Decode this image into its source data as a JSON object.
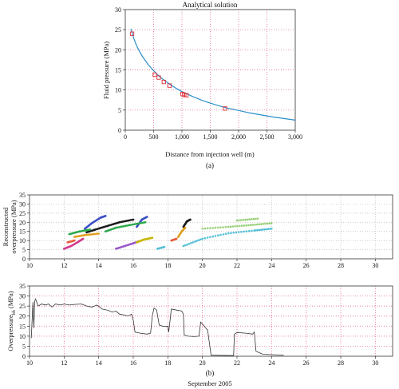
{
  "figure": {
    "panel_a_label": "(a)",
    "panel_b_label": "(b)",
    "footer": "September 2005"
  },
  "chart_data": [
    {
      "type": "line",
      "title": "Analytical solution",
      "xlabel": "Distance from injection well (m)",
      "ylabel": "Fluid pressure (MPa)",
      "xlim": [
        0,
        3000
      ],
      "ylim": [
        0,
        30
      ],
      "xticks": [
        0,
        500,
        1000,
        1500,
        2000,
        2500,
        3000
      ],
      "xtick_labels": [
        "0",
        "500",
        "1,000",
        "1,500",
        "2,000",
        "2,500",
        "3,000"
      ],
      "yticks": [
        0,
        5,
        10,
        15,
        20,
        25,
        30
      ],
      "grid": "dotted red",
      "series": [
        {
          "kind": "curve",
          "color": "#2a8fc9",
          "x": [
            100,
            150,
            200,
            250,
            300,
            400,
            500,
            600,
            700,
            800,
            900,
            1000,
            1200,
            1400,
            1600,
            1800,
            2000,
            2200,
            2400,
            2600,
            2800,
            3000
          ],
          "y": [
            25.2,
            22.8,
            21.0,
            19.6,
            18.4,
            16.4,
            14.8,
            13.4,
            12.3,
            11.3,
            10.4,
            9.6,
            8.3,
            7.2,
            6.3,
            5.5,
            4.9,
            4.3,
            3.8,
            3.3,
            2.9,
            2.5
          ]
        },
        {
          "kind": "markers",
          "color": "#e0303a",
          "x": [
            120,
            520,
            590,
            680,
            780,
            1010,
            1040,
            1080,
            1760
          ],
          "y": [
            24.0,
            13.8,
            13.1,
            12.0,
            11.1,
            9.0,
            8.8,
            8.7,
            5.4
          ]
        }
      ]
    },
    {
      "type": "scatter",
      "title": "",
      "xlabel": "",
      "ylabel": "Reconstructed overpressure (MPa)",
      "xlim": [
        10,
        31
      ],
      "ylim": [
        0,
        35
      ],
      "xticks": [
        10,
        12,
        14,
        16,
        18,
        20,
        22,
        24,
        26,
        28,
        30
      ],
      "yticks": [
        0,
        5,
        10,
        15,
        20,
        25,
        30,
        35
      ],
      "grid": "dotted grey",
      "series": [
        {
          "color": "#d23c8c",
          "segments": [
            [
              [
                12.0,
                5.5
              ],
              [
                12.4,
                7.0
              ],
              [
                12.8,
                9.2
              ],
              [
                13.1,
                11.0
              ]
            ]
          ]
        },
        {
          "color": "#3d4fc4",
          "segments": [
            [
              [
                13.2,
                16.5
              ],
              [
                13.6,
                19.5
              ],
              [
                14.1,
                22.5
              ],
              [
                14.4,
                23.5
              ]
            ],
            [
              [
                16.2,
                17.5
              ],
              [
                16.5,
                21.5
              ],
              [
                16.8,
                23.0
              ]
            ]
          ]
        },
        {
          "color": "#1a1a1a",
          "segments": [
            [
              [
                13.3,
                14.5
              ],
              [
                13.8,
                16.0
              ],
              [
                14.5,
                18.0
              ],
              [
                15.2,
                20.0
              ],
              [
                16.0,
                21.5
              ]
            ],
            [
              [
                18.9,
                17.5
              ],
              [
                19.1,
                20.5
              ],
              [
                19.3,
                21.5
              ]
            ]
          ]
        },
        {
          "color": "#2aa84a",
          "segments": [
            [
              [
                14.4,
                15.0
              ],
              [
                15.0,
                17.0
              ],
              [
                15.8,
                18.5
              ],
              [
                16.7,
                20.0
              ]
            ],
            [
              [
                12.3,
                13.5
              ],
              [
                12.9,
                15.0
              ],
              [
                13.5,
                16.0
              ]
            ]
          ]
        },
        {
          "color": "#e0a020",
          "segments": [
            [
              [
                12.6,
                12.0
              ],
              [
                13.2,
                13.0
              ],
              [
                14.0,
                13.8
              ]
            ],
            [
              [
                18.6,
                12.0
              ],
              [
                18.8,
                15.0
              ],
              [
                19.0,
                17.0
              ]
            ]
          ]
        },
        {
          "color": "#9b59c9",
          "segments": [
            [
              [
                15.0,
                5.5
              ],
              [
                15.5,
                7.0
              ],
              [
                16.0,
                8.5
              ],
              [
                16.3,
                9.5
              ]
            ]
          ]
        },
        {
          "color": "#c8b400",
          "segments": [
            [
              [
                16.2,
                9.0
              ],
              [
                16.6,
                10.5
              ],
              [
                17.1,
                11.5
              ]
            ]
          ]
        },
        {
          "color": "#56c0d8",
          "segments": [
            [
              [
                18.9,
                7.0
              ],
              [
                20.0,
                11.0
              ],
              [
                21.5,
                14.0
              ],
              [
                23.0,
                15.5
              ],
              [
                24.0,
                16.5
              ]
            ],
            [
              [
                17.4,
                5.5
              ],
              [
                17.8,
                6.5
              ]
            ]
          ]
        },
        {
          "color": "#9ad07a",
          "segments": [
            [
              [
                20.0,
                16.5
              ],
              [
                21.5,
                17.5
              ],
              [
                22.8,
                18.5
              ],
              [
                24.0,
                19.5
              ]
            ],
            [
              [
                22.0,
                21.0
              ],
              [
                23.2,
                22.0
              ]
            ]
          ]
        },
        {
          "color": "#e85a3a",
          "segments": [
            [
              [
                12.2,
                9.0
              ],
              [
                12.6,
                10.0
              ]
            ],
            [
              [
                18.2,
                10.0
              ],
              [
                18.5,
                11.0
              ]
            ]
          ]
        }
      ]
    },
    {
      "type": "line",
      "title": "",
      "xlabel": "September 2005",
      "ylabel": "Overpressure_bh (MPa)",
      "xlim": [
        10,
        31
      ],
      "ylim": [
        0,
        35
      ],
      "xticks": [
        10,
        12,
        14,
        16,
        18,
        20,
        22,
        24,
        26,
        28,
        30
      ],
      "yticks": [
        0,
        5,
        10,
        15,
        20,
        25,
        30,
        35
      ],
      "grid": "dotted red",
      "series": [
        {
          "color": "#333333",
          "x": [
            10.1,
            10.2,
            10.25,
            10.3,
            10.35,
            10.5,
            10.7,
            10.9,
            11.1,
            11.3,
            11.5,
            11.8,
            12.0,
            12.3,
            12.6,
            13.0,
            13.3,
            13.6,
            13.9,
            14.2,
            14.5,
            14.8,
            15.0,
            15.2,
            15.5,
            15.7,
            15.9,
            16.0,
            16.1,
            16.4,
            16.8,
            17.0,
            17.1,
            17.2,
            17.35,
            17.5,
            17.7,
            17.9,
            18.0,
            18.05,
            18.2,
            18.5,
            18.8,
            18.9,
            18.95,
            19.2,
            19.5,
            19.8,
            19.9,
            19.95,
            20.1,
            20.3,
            20.5,
            21.8,
            21.85,
            22.0,
            22.5,
            22.9,
            23.0,
            23.1,
            23.5,
            24.0,
            24.6,
            24.7
          ],
          "y": [
            9.0,
            27.0,
            14.0,
            27.5,
            28.5,
            25.0,
            26.0,
            25.5,
            26.0,
            24.5,
            26.0,
            25.5,
            26.0,
            25.5,
            25.8,
            26.0,
            25.0,
            24.5,
            25.5,
            23.5,
            23.0,
            22.0,
            22.5,
            21.0,
            20.5,
            20.0,
            21.0,
            18.0,
            12.0,
            11.5,
            11.0,
            11.5,
            20.0,
            24.0,
            23.0,
            15.5,
            15.0,
            14.8,
            15.0,
            12.0,
            23.5,
            23.0,
            22.5,
            21.0,
            10.5,
            10.0,
            9.8,
            10.0,
            17.0,
            16.5,
            15.0,
            13.0,
            0.5,
            0.3,
            11.0,
            11.8,
            11.5,
            11.0,
            12.0,
            2.5,
            1.0,
            0.8,
            0.6,
            0.5
          ]
        }
      ]
    }
  ]
}
